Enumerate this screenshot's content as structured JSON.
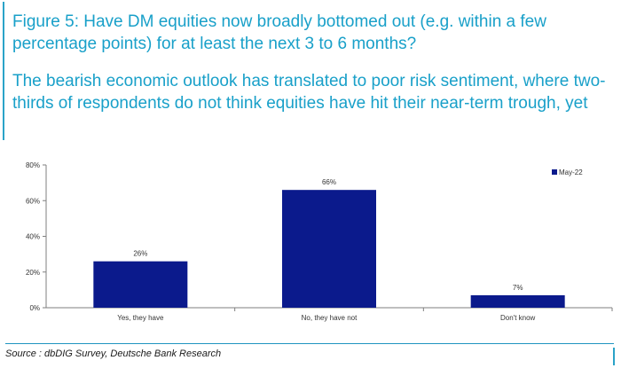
{
  "header": {
    "title": "Figure 5: Have DM equities now broadly bottomed out (e.g. within a few percentage points) for at least the next 3 to 6 months?",
    "subtitle": "The bearish economic outlook has translated to poor risk sentiment, where two-thirds of respondents do not think equities have hit their near-term trough, yet"
  },
  "chart_data": {
    "type": "bar",
    "categories": [
      "Yes, they have",
      "No, they have not",
      "Don't know"
    ],
    "series": [
      {
        "name": "May-22",
        "values": [
          26,
          66,
          7
        ],
        "color": "#0b1a8c"
      }
    ],
    "data_labels": [
      "26%",
      "66%",
      "7%"
    ],
    "yticks": [
      "0%",
      "20%",
      "40%",
      "60%",
      "80%"
    ],
    "ylim": [
      0,
      80
    ],
    "grid": false,
    "legend_position": "top-right"
  },
  "footer": {
    "source": "Source : dbDIG Survey, Deutsche Bank Research"
  }
}
